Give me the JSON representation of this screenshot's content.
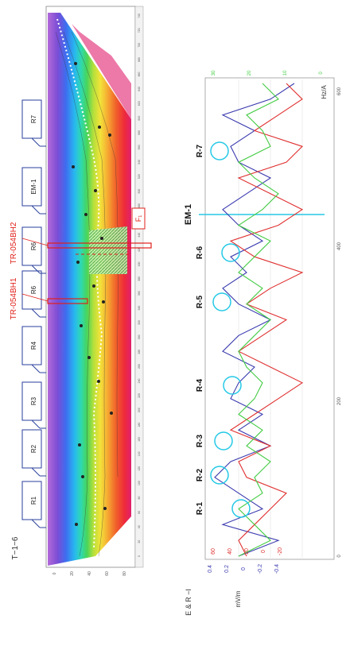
{
  "section_label": "T−1−6",
  "profile_boxes": [
    "R1",
    "R2",
    "R3",
    "R4",
    "R6",
    "R6",
    "EM-1",
    "R7"
  ],
  "borehole_labels": [
    "TR-054BH1",
    "TR-054BH2"
  ],
  "fault_label": "F₁",
  "profile_axis_ticks": [
    "0",
    "20",
    "40",
    "60",
    "80",
    "100",
    "120",
    "140",
    "160",
    "180",
    "200",
    "220",
    "240",
    "260",
    "280",
    "300",
    "320",
    "340",
    "360",
    "380",
    "400",
    "420",
    "440",
    "460",
    "480",
    "500",
    "520",
    "540",
    "560",
    "580",
    "600",
    "620",
    "640",
    "660",
    "680",
    "700",
    "720",
    "740"
  ],
  "graph_markers": [
    "R-1",
    "R-2",
    "R-3",
    "R-4",
    "R-5",
    "R-6",
    "R-7"
  ],
  "em_marker": "EM-1",
  "graph_left_axis_label": "E & R −I",
  "graph_left_axis_ticks": [
    "0.4",
    "0.2",
    "0",
    "-0.2",
    "-0.4"
  ],
  "graph_left_axis_ticks2": [
    "60",
    "40",
    "20",
    "0",
    "-20"
  ],
  "graph_left_axis_label2": "mV/m",
  "graph_right_axis_label": "Hz/A",
  "graph_right_axis_ticks": [
    "30",
    "20",
    "10",
    "0"
  ],
  "graph_bottom_ticks": [
    "0",
    "200",
    "400",
    "600"
  ],
  "colors": {
    "box_blue": "#2a3f9c",
    "red": "#e0201a",
    "cyan": "#25c9e6",
    "series_blue": "#3b3bb0",
    "series_red": "#e03030",
    "series_green": "#44cc44",
    "fault_fill": "#9fe08a"
  }
}
